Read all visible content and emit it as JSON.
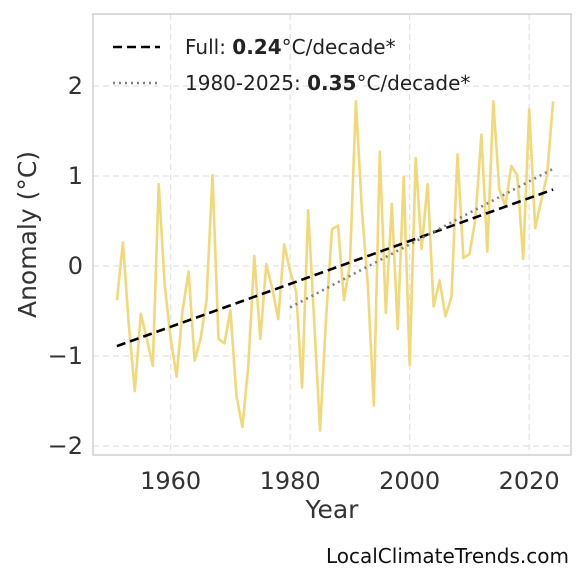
{
  "chart_data": {
    "type": "line",
    "xlabel": "Year",
    "ylabel": "Anomaly (°C)",
    "xlim": [
      1947,
      2027
    ],
    "ylim": [
      -2.1,
      2.8
    ],
    "xticks": [
      1960,
      1980,
      2000,
      2020
    ],
    "yticks": [
      -2,
      -1,
      0,
      1,
      2
    ],
    "ytick_labels": [
      "−2",
      "−1",
      "0",
      "1",
      "2"
    ],
    "grid": true,
    "legend_position": "top-left",
    "series": [
      {
        "style": "solid",
        "color": "#f1d87a",
        "x": [
          1951,
          1952,
          1953,
          1954,
          1955,
          1956,
          1957,
          1958,
          1959,
          1960,
          1961,
          1962,
          1963,
          1964,
          1965,
          1966,
          1967,
          1968,
          1969,
          1970,
          1971,
          1972,
          1973,
          1974,
          1975,
          1976,
          1977,
          1978,
          1979,
          1980,
          1981,
          1982,
          1983,
          1984,
          1985,
          1986,
          1987,
          1988,
          1989,
          1990,
          1991,
          1992,
          1993,
          1994,
          1995,
          1996,
          1997,
          1998,
          1999,
          2000,
          2001,
          2002,
          2003,
          2004,
          2005,
          2006,
          2007,
          2008,
          2009,
          2010,
          2011,
          2012,
          2013,
          2014,
          2015,
          2016,
          2017,
          2018,
          2019,
          2020,
          2021,
          2022,
          2023,
          2024
        ],
        "y": [
          -0.38,
          0.26,
          -0.65,
          -1.39,
          -0.53,
          -0.81,
          -1.11,
          0.91,
          -0.21,
          -0.81,
          -1.23,
          -0.49,
          -0.06,
          -1.05,
          -0.81,
          -0.38,
          1.01,
          -0.81,
          -0.86,
          -0.49,
          -1.44,
          -1.79,
          -1.11,
          0.11,
          -0.81,
          0.02,
          -0.25,
          -0.59,
          0.24,
          -0.06,
          -0.28,
          -1.35,
          0.62,
          -0.59,
          -1.83,
          -0.59,
          0.41,
          0.45,
          -0.38,
          0.02,
          1.83,
          0.62,
          -0.21,
          -1.55,
          1.27,
          -0.52,
          0.69,
          -0.7,
          0.99,
          -1.1,
          1.2,
          0.19,
          0.91,
          -0.45,
          -0.16,
          -0.56,
          -0.34,
          1.24,
          0.09,
          0.13,
          0.52,
          1.46,
          0.16,
          1.83,
          0.85,
          0.67,
          1.11,
          1.01,
          0.08,
          1.74,
          0.42,
          0.72,
          1.01,
          1.83
        ]
      },
      {
        "name": "Full",
        "style": "dashed",
        "color": "#000000",
        "x": [
          1951,
          2024
        ],
        "y": [
          -0.89,
          0.85
        ]
      },
      {
        "name": "1980-2025",
        "style": "dotted",
        "color": "#808080",
        "x": [
          1980,
          2024
        ],
        "y": [
          -0.46,
          1.08
        ]
      }
    ],
    "legend": [
      {
        "label": "Full: ",
        "value": "0.24",
        "unit": "°C/decade*"
      },
      {
        "label": "1980-2025: ",
        "value": "0.35",
        "unit": "°C/decade*"
      }
    ]
  },
  "source": "LocalClimateTrends.com"
}
